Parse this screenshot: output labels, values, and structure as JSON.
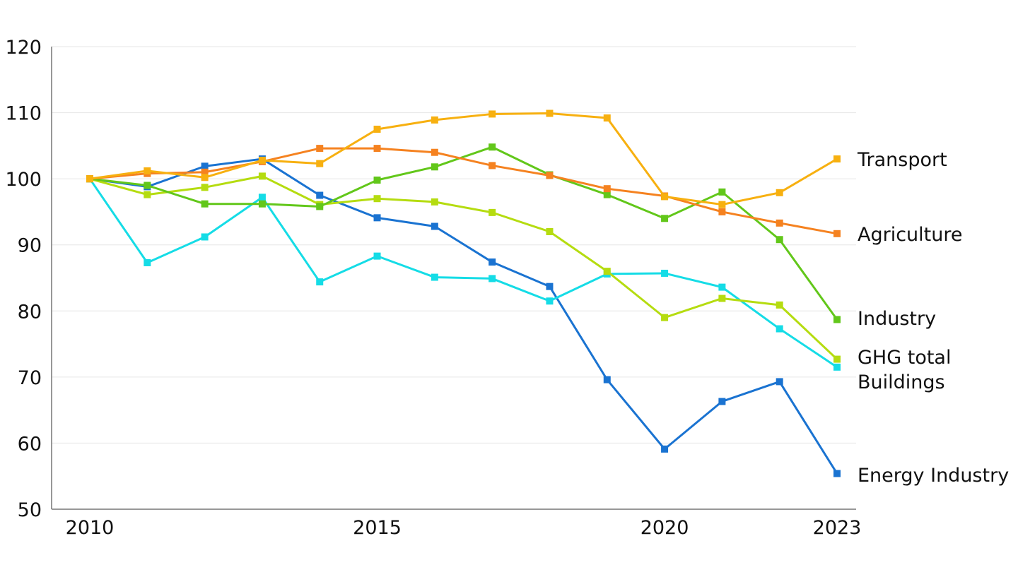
{
  "chart_data": {
    "type": "line",
    "title": "",
    "xlabel": "",
    "ylabel": "",
    "x": [
      2010,
      2011,
      2012,
      2013,
      2014,
      2015,
      2016,
      2017,
      2018,
      2019,
      2020,
      2021,
      2022,
      2023
    ],
    "x_ticks": [
      "2010",
      "2015",
      "2020",
      "2023"
    ],
    "x_tick_values": [
      2010,
      2015,
      2020,
      2023
    ],
    "y_ticks": [
      "50",
      "60",
      "70",
      "80",
      "90",
      "100",
      "110",
      "120"
    ],
    "y_tick_values": [
      50,
      60,
      70,
      80,
      90,
      100,
      110,
      120
    ],
    "xlim": [
      2010,
      2023
    ],
    "ylim": [
      50,
      120
    ],
    "grid": "horizontal",
    "legend": "right-end labels",
    "series": [
      {
        "name": "Transport",
        "color": "#F7B010",
        "values": [
          100,
          101.2,
          100.2,
          102.8,
          102.3,
          107.5,
          108.9,
          109.8,
          109.9,
          109.2,
          97.3,
          96.1,
          97.9,
          103.0
        ]
      },
      {
        "name": "Agriculture",
        "color": "#F58220",
        "values": [
          100,
          100.8,
          101.0,
          102.6,
          104.6,
          104.6,
          104.0,
          102.0,
          100.5,
          98.5,
          97.4,
          95.0,
          93.3,
          91.7
        ]
      },
      {
        "name": "Industry",
        "color": "#62C71A",
        "values": [
          100,
          99.0,
          96.2,
          96.2,
          95.8,
          99.8,
          101.8,
          104.8,
          100.6,
          97.6,
          94.0,
          98.0,
          90.8,
          78.7
        ]
      },
      {
        "name": "GHG total",
        "color": "#B5DC10",
        "values": [
          100,
          97.6,
          98.7,
          100.4,
          96.1,
          97.0,
          96.5,
          94.9,
          92.0,
          86.0,
          79.0,
          81.9,
          80.9,
          72.7
        ]
      },
      {
        "name": "Buildings",
        "color": "#15DCE6",
        "values": [
          100,
          87.3,
          91.2,
          97.2,
          84.4,
          88.3,
          85.1,
          84.9,
          81.5,
          85.6,
          85.7,
          83.6,
          77.3,
          71.5
        ]
      },
      {
        "name": "Energy Industry",
        "color": "#1A73D1",
        "values": [
          100,
          98.8,
          101.9,
          103.0,
          97.5,
          94.1,
          92.8,
          87.4,
          83.7,
          69.6,
          59.1,
          66.3,
          69.3,
          55.4
        ]
      }
    ]
  }
}
